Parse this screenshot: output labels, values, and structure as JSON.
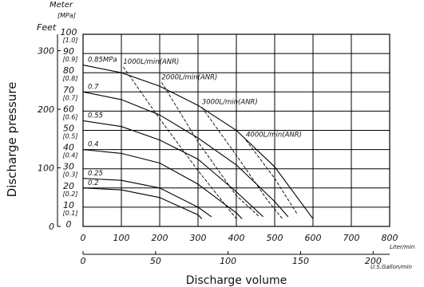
{
  "chart_data": {
    "type": "line",
    "ylabel": "Discharge pressure",
    "xlabel": "Discharge volume",
    "units": {
      "meter": "Meter",
      "mpa": "[MPa]",
      "feet": "Feet",
      "liter": "Liter/min",
      "gallon": "U.S.Gallon/min"
    },
    "x_liter_ticks": [
      "0",
      "100",
      "200",
      "300",
      "400",
      "500",
      "600",
      "700",
      "800"
    ],
    "x_gallon_ticks": [
      "0",
      "50",
      "100",
      "150",
      "200"
    ],
    "y_meter_ticks": [
      "0",
      "10",
      "20",
      "30",
      "40",
      "50",
      "60",
      "70",
      "80",
      "90",
      "100"
    ],
    "y_mpa_ticks": [
      "[0.1]",
      "[0.2]",
      "[0.3]",
      "[0.4]",
      "[0.5]",
      "[0.6]",
      "[0.7]",
      "[0.8]",
      "[0.9]",
      "[1.0]"
    ],
    "y_feet_ticks": [
      "0",
      "100",
      "200",
      "300"
    ],
    "xlim": [
      0,
      800
    ],
    "ylim": [
      0,
      100
    ],
    "grid": true,
    "series": [
      {
        "name": "0.85MPa",
        "x": [
          0,
          100,
          200,
          300,
          400,
          500,
          600
        ],
        "y": [
          84,
          80,
          73,
          63,
          50,
          31,
          4
        ]
      },
      {
        "name": "0.7",
        "x": [
          0,
          100,
          200,
          300,
          400,
          500,
          535
        ],
        "y": [
          70,
          66,
          58,
          46,
          32,
          13,
          5
        ]
      },
      {
        "name": "0.55",
        "x": [
          0,
          100,
          200,
          300,
          400,
          470
        ],
        "y": [
          55,
          52,
          45,
          35,
          18,
          5
        ]
      },
      {
        "name": "0.4",
        "x": [
          0,
          100,
          200,
          300,
          400,
          415
        ],
        "y": [
          40,
          38,
          33,
          22,
          7,
          4
        ]
      },
      {
        "name": "0.25",
        "x": [
          0,
          100,
          200,
          300,
          335
        ],
        "y": [
          25,
          24,
          20,
          10,
          5
        ]
      },
      {
        "name": "0.2",
        "x": [
          0,
          100,
          200,
          300,
          310
        ],
        "y": [
          20,
          19,
          15,
          6,
          4
        ]
      }
    ],
    "air_consumption_lines": [
      {
        "name": "1000L/min(ANR)",
        "x": [
          105,
          200,
          300,
          400
        ],
        "y": [
          83,
          56,
          29,
          4
        ]
      },
      {
        "name": "2000L/min(ANR)",
        "x": [
          205,
          300,
          400,
          460
        ],
        "y": [
          75,
          44,
          16,
          5
        ]
      },
      {
        "name": "3000L/min(ANR)",
        "x": [
          310,
          400,
          480,
          520
        ],
        "y": [
          62,
          37,
          14,
          4
        ]
      },
      {
        "name": "4000L/min(ANR)",
        "x": [
          425,
          500,
          560
        ],
        "y": [
          45,
          25,
          6
        ]
      }
    ]
  }
}
